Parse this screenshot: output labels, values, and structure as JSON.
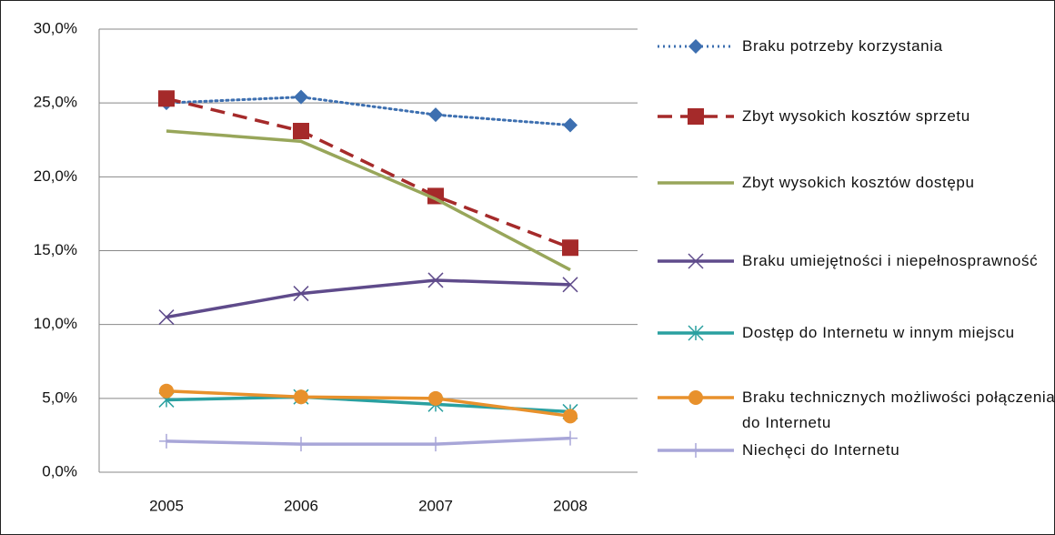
{
  "chart_data": {
    "type": "line",
    "categories": [
      "2005",
      "2006",
      "2007",
      "2008"
    ],
    "ylim": [
      0,
      30
    ],
    "yticks": [
      {
        "value": 0,
        "label": "0,0%"
      },
      {
        "value": 5,
        "label": "5,0%"
      },
      {
        "value": 10,
        "label": "10,0%"
      },
      {
        "value": 15,
        "label": "15,0%"
      },
      {
        "value": 20,
        "label": "20,0%"
      },
      {
        "value": 25,
        "label": "25,0%"
      },
      {
        "value": 30,
        "label": "30,0%"
      }
    ],
    "grid": true,
    "legend": "right",
    "series": [
      {
        "name": "Braku potrzeby korzystania",
        "color": "#3d6fb0",
        "dash": "dotted",
        "marker": "diamond",
        "values": [
          25.0,
          25.4,
          24.2,
          23.5
        ]
      },
      {
        "name": "Zbyt wysokich kosztów sprzetu",
        "color": "#a52a2a",
        "dash": "dashed",
        "marker": "square",
        "values": [
          25.3,
          23.1,
          18.7,
          15.2
        ]
      },
      {
        "name": "Zbyt wysokich kosztów dostępu",
        "color": "#98a65a",
        "dash": "solid",
        "marker": "none",
        "values": [
          23.1,
          22.4,
          18.5,
          13.7
        ]
      },
      {
        "name": "Braku umiejętności i niepełnosprawność",
        "color": "#5f4b8b",
        "dash": "solid",
        "marker": "x",
        "values": [
          10.5,
          12.1,
          13.0,
          12.7
        ]
      },
      {
        "name": "Dostęp do Internetu w innym miejscu",
        "color": "#2aa0a0",
        "dash": "solid",
        "marker": "star",
        "values": [
          4.9,
          5.1,
          4.6,
          4.1
        ]
      },
      {
        "name": "Braku technicznych możliwości połączenia do Internetu",
        "color": "#e8912c",
        "dash": "solid",
        "marker": "circle",
        "values": [
          5.5,
          5.1,
          5.0,
          3.8
        ]
      },
      {
        "name": "Niechęci do Internetu",
        "color": "#a8a6d8",
        "dash": "solid",
        "marker": "plus",
        "values": [
          2.1,
          1.9,
          1.9,
          2.3
        ]
      }
    ]
  }
}
